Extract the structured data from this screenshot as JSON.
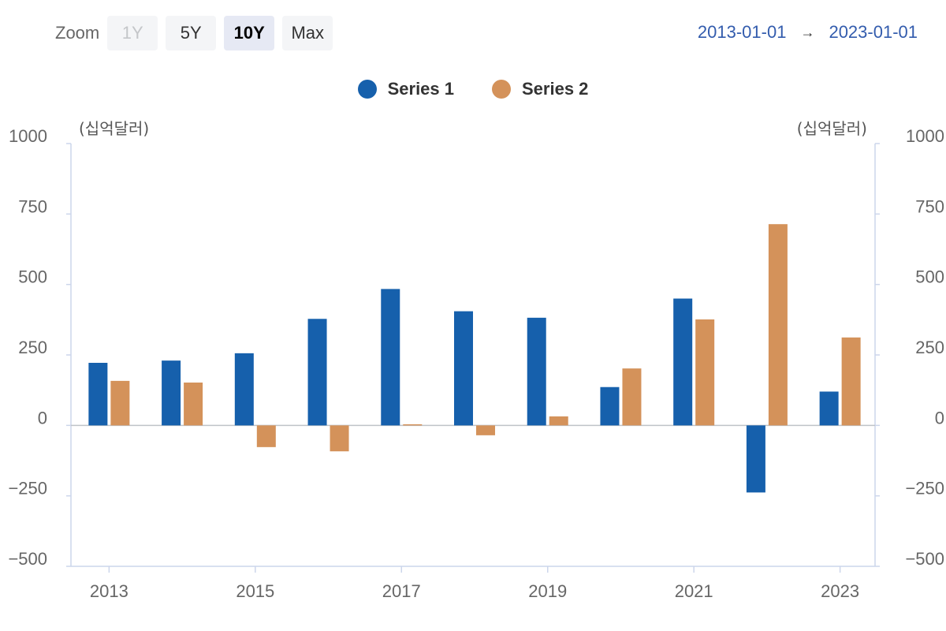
{
  "toolbar": {
    "zoom_label": "Zoom",
    "buttons": [
      {
        "label": "1Y",
        "state": "disabled"
      },
      {
        "label": "5Y",
        "state": "normal"
      },
      {
        "label": "10Y",
        "state": "active"
      },
      {
        "label": "Max",
        "state": "normal"
      }
    ]
  },
  "range": {
    "from": "2013-01-01",
    "arrow": "→",
    "to": "2023-01-01"
  },
  "legend": [
    {
      "name": "Series 1",
      "color": "#1660ac"
    },
    {
      "name": "Series 2",
      "color": "#d4925a"
    }
  ],
  "chart_data": {
    "type": "bar",
    "categories": [
      "2013",
      "2014",
      "2015",
      "2016",
      "2017",
      "2018",
      "2019",
      "2020",
      "2021",
      "2022",
      "2023"
    ],
    "x_tick_labels": [
      "2013",
      "2015",
      "2017",
      "2019",
      "2021",
      "2023"
    ],
    "y_unit_left": "(십억달러)",
    "y_unit_right": "(십억달러)",
    "ylim": [
      -500,
      1000
    ],
    "y_ticks": [
      1000,
      750,
      500,
      250,
      0,
      -250,
      -500
    ],
    "y_tick_labels": [
      "1000",
      "750",
      "500",
      "250",
      "0",
      "−250",
      "−500"
    ],
    "grid": false,
    "legend_position": "top-center",
    "series": [
      {
        "name": "Series 1",
        "color": "#1660ac",
        "values": [
          222,
          230,
          256,
          378,
          484,
          405,
          382,
          136,
          450,
          -238,
          120
        ]
      },
      {
        "name": "Series 2",
        "color": "#d4925a",
        "values": [
          158,
          152,
          -77,
          -92,
          4,
          -35,
          32,
          202,
          376,
          714,
          312
        ]
      }
    ]
  }
}
